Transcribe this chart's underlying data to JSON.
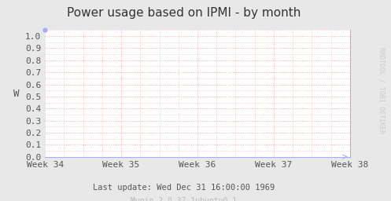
{
  "title": "Power usage based on IPMI - by month",
  "ylabel": "W",
  "xtick_labels": [
    "Week 34",
    "Week 35",
    "Week 36",
    "Week 37",
    "Week 38"
  ],
  "ytick_labels": [
    "0.0",
    "0.1",
    "0.2",
    "0.3",
    "0.4",
    "0.5",
    "0.6",
    "0.7",
    "0.8",
    "0.9",
    "1.0"
  ],
  "ytick_values": [
    0.0,
    0.1,
    0.2,
    0.3,
    0.4,
    0.5,
    0.6,
    0.7,
    0.8,
    0.9,
    1.0
  ],
  "ylim": [
    0.0,
    1.05
  ],
  "background_color": "#e8e8e8",
  "plot_bg_color": "#ffffff",
  "grid_color": "#ff9999",
  "footer_text": "Last update: Wed Dec 31 16:00:00 1969",
  "footer_text2": "Munin 2.0.37-1ubuntu0.1",
  "watermark": "RRDTOOL / TOBI OETIKER",
  "title_fontsize": 11,
  "label_fontsize": 8,
  "tick_fontsize": 8,
  "footer_fontsize": 7.5,
  "watermark_fontsize": 6,
  "axis_line_color": "#aaaaff"
}
